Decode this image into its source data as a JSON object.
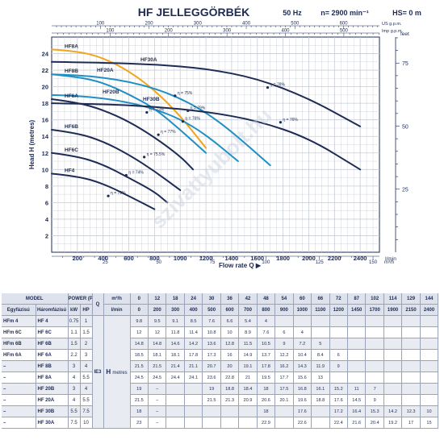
{
  "header": {
    "title": "HF JELLEGGÖRBÉK",
    "frequency": "50 Hz",
    "speed": "n= 2900 min⁻¹",
    "hs": "HS= 0 m"
  },
  "colors": {
    "navy": "#1d2b55",
    "blue": "#1f8fc4",
    "orange": "#f2a41c",
    "grid": "#c7ccd6"
  },
  "watermark": "szivattyubolt.hu",
  "chart_data": {
    "type": "line",
    "xlabel": "Flow rate Q",
    "x_unit": "l/min",
    "ylabel": "Head H (metres)",
    "y_right_unit": "feet",
    "top_axis_units": [
      "US g.p.m.",
      "Imp g.p.m."
    ],
    "bottom_axis_unit": "m³/h",
    "xlim": [
      0,
      2550
    ],
    "ylim": [
      0,
      26
    ],
    "x_ticks": [
      200,
      400,
      600,
      800,
      1000,
      1200,
      1400,
      1600,
      1800,
      2000,
      2200,
      2400
    ],
    "y_ticks": [
      2,
      4,
      6,
      8,
      10,
      12,
      14,
      16,
      18,
      20,
      22,
      24
    ],
    "feet_ticks": [
      25,
      50,
      75
    ],
    "us_gpm_ticks": [
      100,
      200,
      300,
      400,
      500,
      600
    ],
    "imp_gpm_ticks": [
      100,
      200,
      300,
      400,
      500
    ],
    "m3h_ticks": [
      25,
      50,
      75,
      100,
      125,
      150
    ],
    "series": [
      {
        "name": "HF4",
        "color": "navy",
        "x": [
          0,
          200,
          400,
          600,
          800
        ],
        "y": [
          9.5,
          9.2,
          8.3,
          6.8,
          5.2
        ]
      },
      {
        "name": "HF6C",
        "color": "navy",
        "x": [
          0,
          200,
          400,
          600,
          800,
          900
        ],
        "y": [
          12.0,
          11.6,
          10.6,
          9.0,
          7.3,
          6.0
        ]
      },
      {
        "name": "HF6B",
        "color": "navy",
        "x": [
          0,
          200,
          400,
          600,
          800,
          1000
        ],
        "y": [
          14.8,
          14.4,
          13.4,
          11.8,
          9.8,
          7.5
        ]
      },
      {
        "name": "HF6A",
        "color": "navy",
        "x": [
          0,
          200,
          400,
          600,
          800,
          1000,
          1100
        ],
        "y": [
          18.5,
          18.1,
          17.2,
          15.8,
          13.9,
          11.6,
          10.0
        ]
      },
      {
        "name": "HF8B",
        "color": "blue",
        "x": [
          0,
          200,
          400,
          600,
          800,
          1000,
          1200
        ],
        "y": [
          21.5,
          21.2,
          20.5,
          19.1,
          17.4,
          14.8,
          12.0
        ]
      },
      {
        "name": "HF8A",
        "color": "orange",
        "x": [
          0,
          200,
          400,
          600,
          800,
          1000,
          1200
        ],
        "y": [
          24.5,
          24.3,
          23.5,
          21.9,
          19.6,
          16.5,
          12.6
        ]
      },
      {
        "name": "HF20B",
        "color": "blue",
        "x": [
          0,
          200,
          400,
          600,
          800,
          1000,
          1200,
          1450
        ],
        "y": [
          19.0,
          18.9,
          18.6,
          18.1,
          17.3,
          16.1,
          14.2,
          11.0
        ]
      },
      {
        "name": "HF20A",
        "color": "blue",
        "x": [
          0,
          200,
          400,
          600,
          800,
          1000,
          1200,
          1400,
          1700
        ],
        "y": [
          21.5,
          21.4,
          21.1,
          20.6,
          19.8,
          18.6,
          16.9,
          14.6,
          10.5
        ]
      },
      {
        "name": "HF30B",
        "color": "navy",
        "x": [
          0,
          400,
          800,
          1200,
          1600,
          2000,
          2400
        ],
        "y": [
          18.0,
          17.9,
          17.6,
          17.0,
          15.9,
          13.8,
          10.0
        ]
      },
      {
        "name": "HF30A",
        "color": "navy",
        "x": [
          0,
          400,
          800,
          1200,
          1600,
          2000,
          2400
        ],
        "y": [
          23.0,
          22.9,
          22.7,
          22.2,
          21.0,
          18.6,
          15.2
        ]
      }
    ],
    "curve_labels": [
      {
        "series": "HF8A",
        "text": "HF8A"
      },
      {
        "series": "HF30A",
        "text": "HF30A"
      },
      {
        "series": "HF20A",
        "text": "HF20A"
      },
      {
        "series": "HF8B",
        "text": "HF8B"
      },
      {
        "series": "HF20B",
        "text": "HF20B"
      },
      {
        "series": "HF6A",
        "text": "HF6A"
      },
      {
        "series": "HF30B",
        "text": "HF30B"
      },
      {
        "series": "HF6B",
        "text": "HF6B"
      },
      {
        "series": "HF6C",
        "text": "HF6C"
      },
      {
        "series": "HF4",
        "text": "HF4"
      }
    ],
    "efficiency_points": [
      {
        "x": 1680,
        "y": 19.9,
        "text": "η = 78%"
      },
      {
        "x": 1780,
        "y": 15.7,
        "text": "η = 76%"
      },
      {
        "x": 960,
        "y": 18.9,
        "text": "η = 75%"
      },
      {
        "x": 1060,
        "y": 17.1,
        "text": "η = 79%"
      },
      {
        "x": 1020,
        "y": 15.8,
        "text": "η = 76%"
      },
      {
        "x": 740,
        "y": 16.9,
        "text": "η = 73%"
      },
      {
        "x": 830,
        "y": 14.2,
        "text": "η = 77%"
      },
      {
        "x": 720,
        "y": 11.5,
        "text": "η = 75.5%"
      },
      {
        "x": 580,
        "y": 9.3,
        "text": "η = 74%"
      },
      {
        "x": 440,
        "y": 6.8,
        "text": "η = 72%"
      }
    ]
  },
  "table": {
    "headers": {
      "model": "MODEL",
      "single_phase": "Egyfázisú",
      "three_phase": "Háromfázisú",
      "power": "POWER (P₂)",
      "kw": "kW",
      "hp": "HP",
      "q": "Q",
      "q_m3h": "m³/h",
      "q_lmin": "l/min",
      "ie3": "IE3",
      "h": "H",
      "metres": "metres"
    },
    "m3h": [
      "0",
      "12",
      "18",
      "24",
      "30",
      "36",
      "42",
      "48",
      "54",
      "60",
      "66",
      "72",
      "87",
      "102",
      "114",
      "129",
      "144"
    ],
    "lmin": [
      "0",
      "200",
      "300",
      "400",
      "500",
      "600",
      "700",
      "800",
      "900",
      "1000",
      "1100",
      "1200",
      "1450",
      "1700",
      "1900",
      "2150",
      "2400"
    ],
    "rows": [
      {
        "single": "HFm 4",
        "three": "HF 4",
        "kw": "0.75",
        "hp": "1",
        "h": [
          "9.8",
          "9.5",
          "9.1",
          "8.5",
          "7.6",
          "6.6",
          "5.4",
          "4",
          "",
          "",
          "",
          "",
          "",
          "",
          "",
          "",
          ""
        ]
      },
      {
        "single": "HFm 6C",
        "three": "HF 6C",
        "kw": "1.1",
        "hp": "1.5",
        "h": [
          "12",
          "12",
          "11.8",
          "11.4",
          "10.8",
          "10",
          "8.9",
          "7.6",
          "6",
          "4",
          "",
          "",
          "",
          "",
          "",
          "",
          ""
        ]
      },
      {
        "single": "HFm 6B",
        "three": "HF 6B",
        "kw": "1.5",
        "hp": "2",
        "h": [
          "14.8",
          "14.8",
          "14.6",
          "14.2",
          "13.6",
          "12.8",
          "11.5",
          "10.5",
          "9",
          "7.2",
          "5",
          "",
          "",
          "",
          "",
          "",
          ""
        ]
      },
      {
        "single": "HFm 6A",
        "three": "HF 6A",
        "kw": "2.2",
        "hp": "3",
        "h": [
          "18.5",
          "18.1",
          "18.1",
          "17.8",
          "17.3",
          "16",
          "14.9",
          "13.7",
          "12.2",
          "10.4",
          "8.4",
          "6",
          "",
          "",
          "",
          "",
          ""
        ]
      },
      {
        "single": "–",
        "three": "HF 8B",
        "kw": "3",
        "hp": "4",
        "h": [
          "21.5",
          "21.5",
          "21.4",
          "21.1",
          "20.7",
          "20",
          "19.1",
          "17.8",
          "16.2",
          "14.3",
          "11.9",
          "9",
          "",
          "",
          "",
          "",
          ""
        ]
      },
      {
        "single": "–",
        "three": "HF 8A",
        "kw": "4",
        "hp": "5.5",
        "h": [
          "24.5",
          "24.5",
          "24.4",
          "24.1",
          "23.6",
          "22.8",
          "21",
          "19.5",
          "17.7",
          "15.6",
          "13",
          "",
          "",
          "",
          "",
          "",
          ""
        ]
      },
      {
        "single": "–",
        "three": "HF 20B",
        "kw": "3",
        "hp": "4",
        "h": [
          "19",
          "–",
          "",
          "",
          "19",
          "18.8",
          "18.4",
          "18",
          "17.5",
          "16.8",
          "16.1",
          "15.2",
          "11",
          "7",
          "",
          "",
          ""
        ]
      },
      {
        "single": "–",
        "three": "HF 20A",
        "kw": "4",
        "hp": "5.5",
        "h": [
          "21.5",
          "–",
          "",
          "",
          "21.5",
          "21.3",
          "20.9",
          "20.6",
          "20.1",
          "19.6",
          "18.8",
          "17.6",
          "14.5",
          "9",
          "",
          "",
          ""
        ]
      },
      {
        "single": "–",
        "three": "HF 30B",
        "kw": "5.5",
        "hp": "7.5",
        "h": [
          "18",
          "–",
          "",
          "",
          "",
          "",
          "",
          "18",
          "",
          "17.6",
          "",
          "17.2",
          "16.4",
          "15.3",
          "14.2",
          "12.3",
          "10"
        ]
      },
      {
        "single": "–",
        "three": "HF 30A",
        "kw": "7.5",
        "hp": "10",
        "h": [
          "23",
          "–",
          "",
          "",
          "",
          "",
          "",
          "22.9",
          "",
          "22.6",
          "",
          "22.4",
          "21.6",
          "20.4",
          "19.2",
          "17",
          "15"
        ]
      }
    ]
  }
}
